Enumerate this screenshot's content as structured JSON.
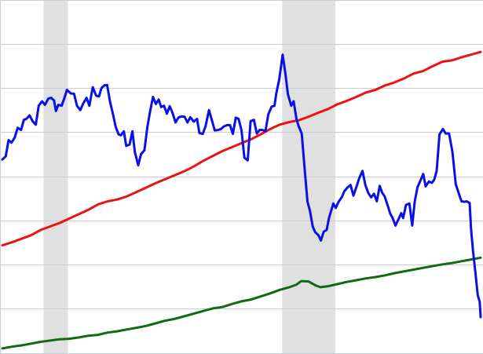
{
  "chart_data": {
    "type": "line",
    "title": "",
    "xlabel": "",
    "ylabel": "",
    "grid": {
      "horizontal": true,
      "vertical": false
    },
    "ylim": [
      0,
      8
    ],
    "x_range": [
      0,
      100
    ],
    "shaded_regions": [
      {
        "start": 8.6,
        "end": 13.7,
        "color": "#e0e0e0"
      },
      {
        "start": 58.5,
        "end": 69.6,
        "color": "#e0e0e0"
      }
    ],
    "series": [
      {
        "color": "#0a10e6",
        "points": [
          [
            0,
            4.38
          ],
          [
            0.7,
            4.45
          ],
          [
            1.3,
            4.82
          ],
          [
            1.9,
            4.76
          ],
          [
            2.6,
            4.88
          ],
          [
            3.2,
            5.1
          ],
          [
            3.9,
            5.05
          ],
          [
            4.5,
            5.28
          ],
          [
            5.0,
            5.3
          ],
          [
            5.7,
            5.38
          ],
          [
            6.3,
            5.25
          ],
          [
            7.0,
            5.17
          ],
          [
            7.6,
            5.6
          ],
          [
            8.3,
            5.7
          ],
          [
            8.9,
            5.62
          ],
          [
            9.6,
            5.76
          ],
          [
            10.2,
            5.78
          ],
          [
            10.8,
            5.72
          ],
          [
            11.2,
            5.48
          ],
          [
            11.7,
            5.62
          ],
          [
            12.4,
            5.6
          ],
          [
            12.9,
            5.75
          ],
          [
            13.5,
            5.96
          ],
          [
            14.3,
            5.88
          ],
          [
            15.0,
            5.87
          ],
          [
            15.6,
            5.6
          ],
          [
            16.3,
            5.5
          ],
          [
            16.9,
            5.65
          ],
          [
            17.6,
            5.78
          ],
          [
            18.2,
            5.6
          ],
          [
            18.9,
            6.02
          ],
          [
            19.6,
            5.83
          ],
          [
            20.2,
            5.81
          ],
          [
            20.7,
            6.0
          ],
          [
            21.3,
            6.06
          ],
          [
            21.9,
            6.07
          ],
          [
            22.5,
            5.7
          ],
          [
            23.1,
            5.42
          ],
          [
            23.7,
            5.12
          ],
          [
            24.3,
            4.95
          ],
          [
            24.8,
            4.93
          ],
          [
            25.4,
            5.02
          ],
          [
            25.9,
            4.69
          ],
          [
            26.6,
            4.72
          ],
          [
            27.2,
            5.02
          ],
          [
            27.7,
            4.55
          ],
          [
            28.4,
            4.25
          ],
          [
            29.0,
            4.5
          ],
          [
            29.7,
            4.59
          ],
          [
            30.3,
            5.1
          ],
          [
            30.9,
            5.48
          ],
          [
            31.5,
            5.8
          ],
          [
            32.1,
            5.64
          ],
          [
            32.7,
            5.74
          ],
          [
            33.2,
            5.57
          ],
          [
            33.8,
            5.6
          ],
          [
            34.4,
            5.42
          ],
          [
            35.0,
            5.59
          ],
          [
            35.6,
            5.43
          ],
          [
            36.2,
            5.22
          ],
          [
            36.8,
            5.33
          ],
          [
            37.4,
            5.36
          ],
          [
            38.1,
            5.35
          ],
          [
            38.7,
            5.22
          ],
          [
            39.3,
            5.34
          ],
          [
            40.0,
            5.24
          ],
          [
            40.7,
            5.3
          ],
          [
            41.2,
            4.98
          ],
          [
            41.9,
            4.96
          ],
          [
            42.5,
            5.14
          ],
          [
            43.2,
            5.5
          ],
          [
            43.8,
            5.28
          ],
          [
            44.4,
            5.04
          ],
          [
            45.1,
            5.05
          ],
          [
            45.7,
            5.07
          ],
          [
            46.3,
            5.13
          ],
          [
            47.0,
            5.16
          ],
          [
            47.6,
            5.16
          ],
          [
            48.2,
            4.96
          ],
          [
            48.8,
            5.33
          ],
          [
            49.4,
            5.3
          ],
          [
            50.0,
            5.04
          ],
          [
            50.6,
            4.42
          ],
          [
            51.3,
            4.36
          ],
          [
            51.9,
            5.25
          ],
          [
            52.6,
            5.28
          ],
          [
            53.2,
            4.97
          ],
          [
            53.8,
            5.05
          ],
          [
            54.4,
            5.05
          ],
          [
            55.0,
            5.02
          ],
          [
            55.6,
            5.4
          ],
          [
            56.3,
            5.58
          ],
          [
            56.9,
            5.6
          ],
          [
            57.3,
            5.9
          ],
          [
            57.9,
            6.2
          ],
          [
            58.6,
            6.76
          ],
          [
            59.2,
            6.32
          ],
          [
            59.7,
            5.86
          ],
          [
            60.4,
            5.6
          ],
          [
            60.9,
            5.7
          ],
          [
            61.5,
            5.3
          ],
          [
            61.9,
            5.15
          ],
          [
            62.6,
            4.97
          ],
          [
            63.2,
            4.17
          ],
          [
            63.8,
            3.42
          ],
          [
            64.3,
            3.22
          ],
          [
            64.9,
            2.86
          ],
          [
            65.4,
            2.73
          ],
          [
            66.1,
            2.66
          ],
          [
            66.6,
            2.54
          ],
          [
            67.2,
            2.74
          ],
          [
            67.8,
            2.78
          ],
          [
            68.3,
            3.05
          ],
          [
            69.2,
            3.38
          ],
          [
            69.7,
            3.28
          ],
          [
            70.3,
            3.42
          ],
          [
            71.0,
            3.53
          ],
          [
            71.5,
            3.66
          ],
          [
            72.2,
            3.75
          ],
          [
            72.8,
            3.8
          ],
          [
            73.4,
            3.56
          ],
          [
            74.1,
            3.78
          ],
          [
            74.6,
            3.95
          ],
          [
            75.3,
            4.12
          ],
          [
            75.9,
            3.8
          ],
          [
            76.5,
            3.62
          ],
          [
            77.1,
            3.52
          ],
          [
            77.7,
            3.6
          ],
          [
            78.3,
            3.43
          ],
          [
            78.9,
            3.78
          ],
          [
            79.4,
            3.63
          ],
          [
            79.9,
            3.55
          ],
          [
            80.5,
            3.36
          ],
          [
            81.1,
            3.15
          ],
          [
            81.6,
            3.05
          ],
          [
            82.2,
            2.88
          ],
          [
            82.8,
            3.02
          ],
          [
            83.4,
            3.16
          ],
          [
            83.8,
            3.05
          ],
          [
            84.4,
            3.35
          ],
          [
            85.1,
            3.38
          ],
          [
            85.7,
            2.88
          ],
          [
            86.2,
            3.42
          ],
          [
            86.8,
            3.75
          ],
          [
            87.4,
            3.9
          ],
          [
            88.0,
            4.05
          ],
          [
            88.5,
            3.77
          ],
          [
            89.2,
            3.88
          ],
          [
            89.8,
            3.85
          ],
          [
            90.3,
            3.92
          ],
          [
            90.8,
            4.12
          ],
          [
            91.4,
            4.95
          ],
          [
            92.1,
            5.07
          ],
          [
            92.7,
            4.97
          ],
          [
            93.4,
            4.97
          ],
          [
            94.1,
            4.55
          ],
          [
            94.8,
            3.82
          ],
          [
            95.4,
            3.62
          ],
          [
            96.0,
            3.43
          ],
          [
            96.6,
            3.42
          ],
          [
            97.1,
            3.43
          ],
          [
            97.7,
            3.39
          ],
          [
            98.0,
            2.8
          ],
          [
            98.4,
            2.3
          ],
          [
            98.9,
            1.82
          ],
          [
            99.4,
            1.3
          ],
          [
            99.8,
            1.15
          ],
          [
            100,
            0.8
          ]
        ]
      },
      {
        "color": "#ee1111",
        "points": [
          [
            0,
            2.43
          ],
          [
            2,
            2.5
          ],
          [
            4,
            2.58
          ],
          [
            6,
            2.66
          ],
          [
            8,
            2.78
          ],
          [
            10,
            2.86
          ],
          [
            12,
            2.94
          ],
          [
            14,
            3.04
          ],
          [
            16,
            3.14
          ],
          [
            18,
            3.24
          ],
          [
            20,
            3.36
          ],
          [
            22,
            3.43
          ],
          [
            24,
            3.47
          ],
          [
            26,
            3.54
          ],
          [
            28,
            3.64
          ],
          [
            30,
            3.74
          ],
          [
            32,
            3.84
          ],
          [
            34,
            3.93
          ],
          [
            36,
            4.02
          ],
          [
            38,
            4.11
          ],
          [
            40,
            4.22
          ],
          [
            42,
            4.35
          ],
          [
            44,
            4.46
          ],
          [
            46,
            4.57
          ],
          [
            48,
            4.66
          ],
          [
            50,
            4.75
          ],
          [
            52,
            4.84
          ],
          [
            54,
            4.95
          ],
          [
            56,
            5.07
          ],
          [
            58,
            5.17
          ],
          [
            60,
            5.23
          ],
          [
            62,
            5.27
          ],
          [
            64,
            5.35
          ],
          [
            66,
            5.44
          ],
          [
            68,
            5.52
          ],
          [
            70,
            5.63
          ],
          [
            72,
            5.71
          ],
          [
            74,
            5.8
          ],
          [
            76,
            5.9
          ],
          [
            78,
            5.96
          ],
          [
            80,
            6.06
          ],
          [
            82,
            6.13
          ],
          [
            84,
            6.22
          ],
          [
            86,
            6.33
          ],
          [
            88,
            6.39
          ],
          [
            90,
            6.5
          ],
          [
            92,
            6.6
          ],
          [
            94,
            6.63
          ],
          [
            96,
            6.7
          ],
          [
            98,
            6.76
          ],
          [
            100,
            6.82
          ]
        ]
      },
      {
        "color": "#0e6b12",
        "points": [
          [
            0,
            0.09
          ],
          [
            2,
            0.13
          ],
          [
            4,
            0.16
          ],
          [
            6,
            0.2
          ],
          [
            8,
            0.24
          ],
          [
            10,
            0.27
          ],
          [
            12,
            0.3
          ],
          [
            14,
            0.31
          ],
          [
            16,
            0.34
          ],
          [
            18,
            0.38
          ],
          [
            20,
            0.4
          ],
          [
            22,
            0.45
          ],
          [
            24,
            0.48
          ],
          [
            26,
            0.52
          ],
          [
            28,
            0.56
          ],
          [
            30,
            0.6
          ],
          [
            32,
            0.66
          ],
          [
            34,
            0.72
          ],
          [
            36,
            0.76
          ],
          [
            38,
            0.82
          ],
          [
            40,
            0.88
          ],
          [
            42,
            0.94
          ],
          [
            44,
            1.0
          ],
          [
            46,
            1.03
          ],
          [
            48,
            1.1
          ],
          [
            50,
            1.16
          ],
          [
            52,
            1.2
          ],
          [
            54,
            1.27
          ],
          [
            56,
            1.34
          ],
          [
            58,
            1.42
          ],
          [
            60,
            1.48
          ],
          [
            61.5,
            1.54
          ],
          [
            62.5,
            1.62
          ],
          [
            64,
            1.61
          ],
          [
            65.5,
            1.52
          ],
          [
            66.5,
            1.48
          ],
          [
            68,
            1.5
          ],
          [
            70,
            1.55
          ],
          [
            72,
            1.6
          ],
          [
            74,
            1.64
          ],
          [
            76,
            1.68
          ],
          [
            78,
            1.71
          ],
          [
            80,
            1.75
          ],
          [
            82,
            1.8
          ],
          [
            84,
            1.84
          ],
          [
            86,
            1.88
          ],
          [
            88,
            1.92
          ],
          [
            90,
            1.96
          ],
          [
            92,
            2.0
          ],
          [
            94,
            2.03
          ],
          [
            96,
            2.07
          ],
          [
            98,
            2.11
          ],
          [
            100,
            2.15
          ]
        ]
      }
    ]
  }
}
